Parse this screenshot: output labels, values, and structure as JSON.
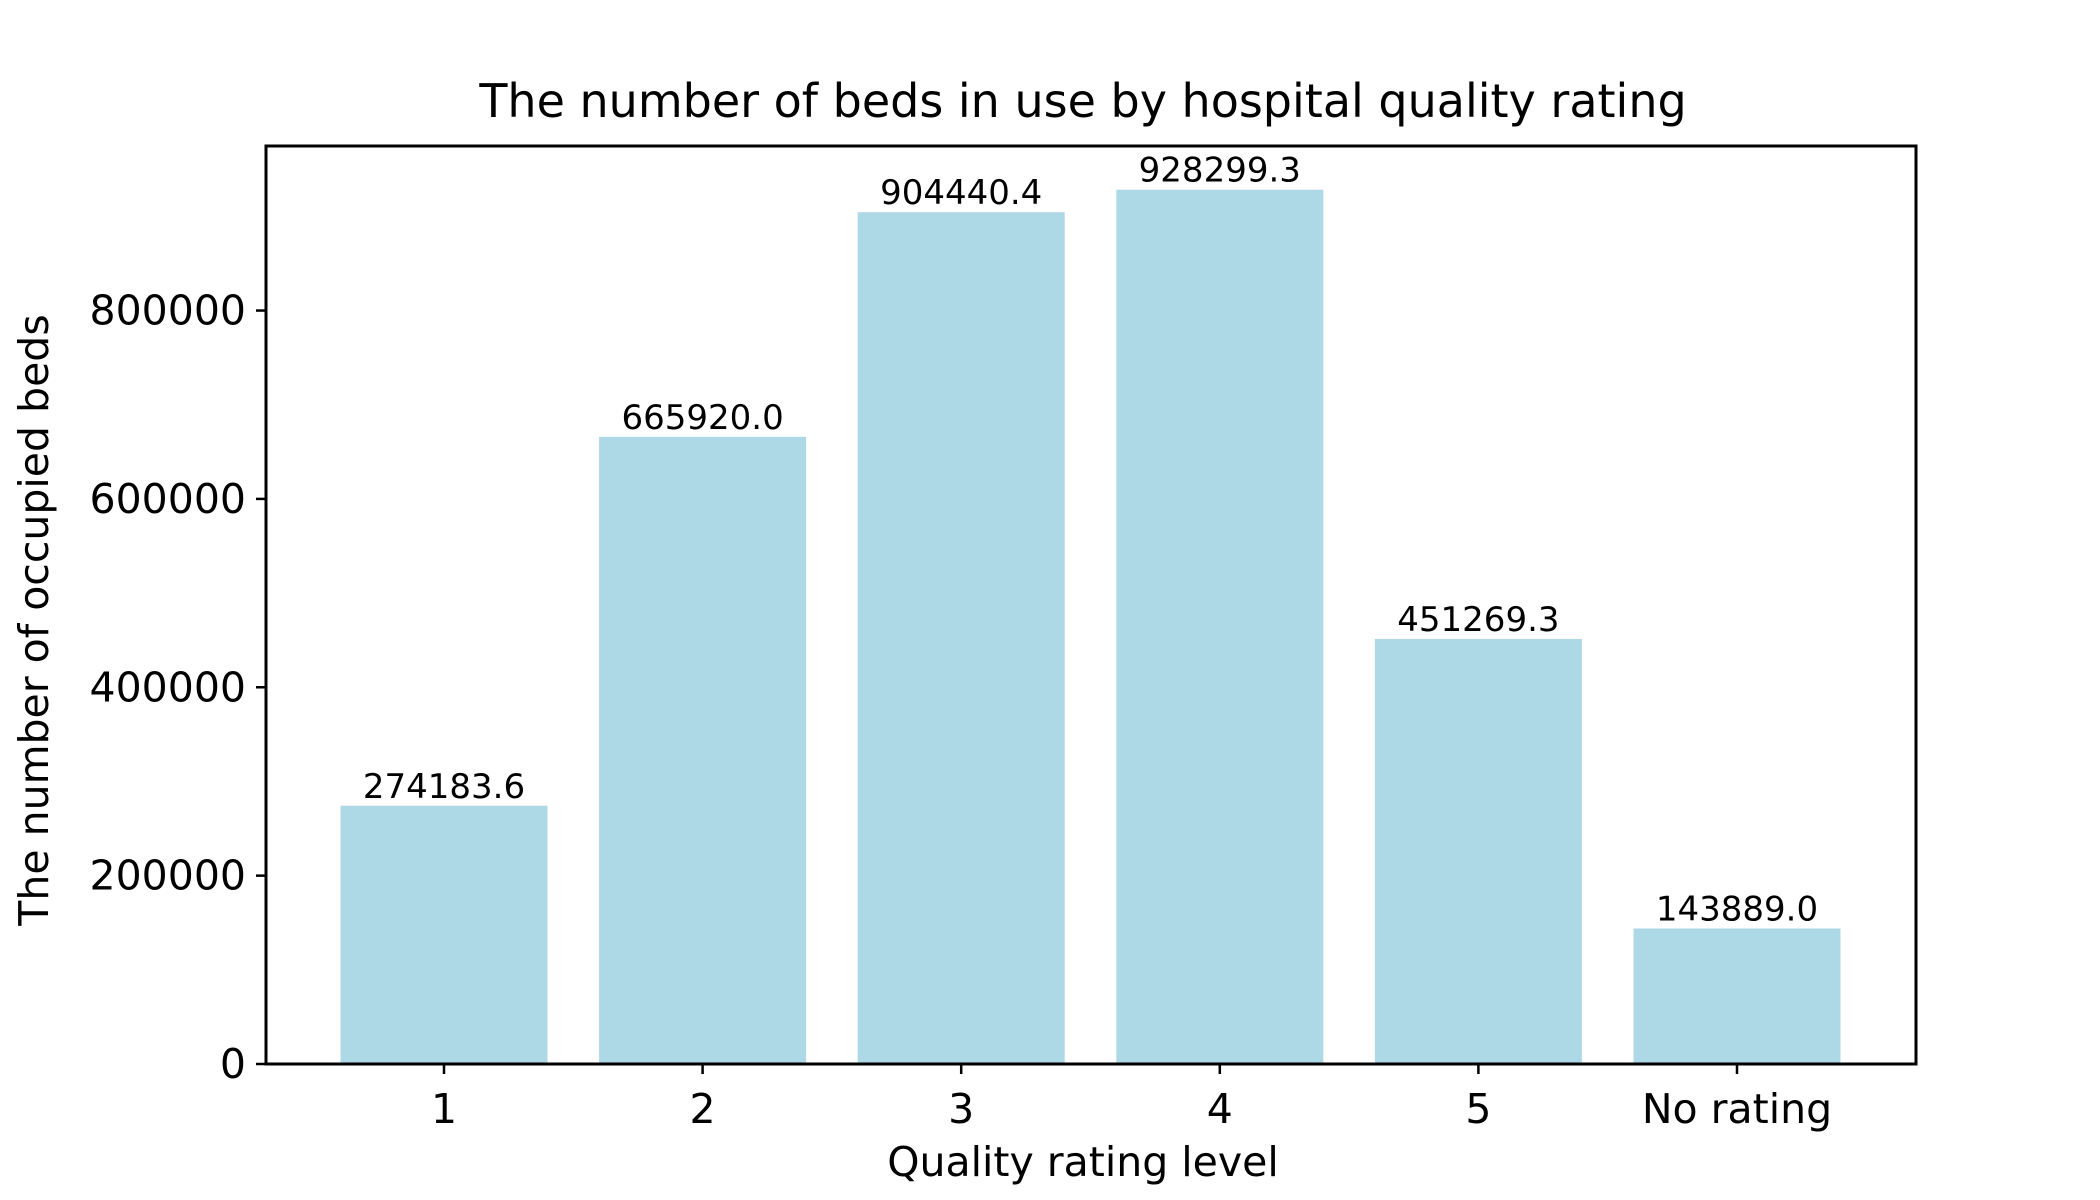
{
  "chart_data": {
    "type": "bar",
    "title": "The number of beds in use by hospital quality rating",
    "xlabel": "Quality rating level",
    "ylabel": "The number of occupied beds",
    "categories": [
      "1",
      "2",
      "3",
      "4",
      "5",
      "No rating"
    ],
    "values": [
      274183.6,
      665920.0,
      904440.4,
      928299.3,
      451269.3,
      143889.0
    ],
    "value_labels": [
      "274183.6",
      "665920.0",
      "904440.4",
      "928299.3",
      "451269.3",
      "143889.0"
    ],
    "yticks": [
      0,
      200000,
      400000,
      600000,
      800000
    ],
    "ytick_labels": [
      "0",
      "200000",
      "400000",
      "600000",
      "800000"
    ],
    "ylim": [
      0,
      974714.3
    ],
    "grid": false,
    "bar_color": "#add8e6"
  }
}
